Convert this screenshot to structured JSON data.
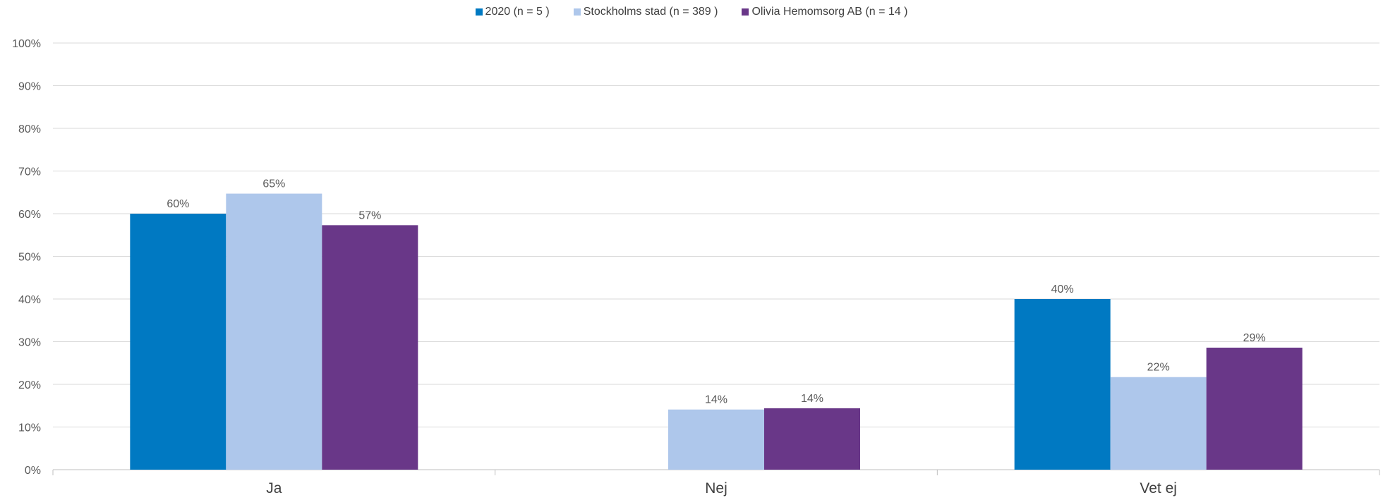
{
  "chart_data": {
    "type": "bar",
    "categories": [
      "Ja",
      "Nej",
      "Vet ej"
    ],
    "series": [
      {
        "name": "2020 (n = 5 )",
        "color": "#0079C2",
        "values": [
          60,
          null,
          40
        ],
        "labels": [
          "60%",
          "",
          "40%"
        ]
      },
      {
        "name": "Stockholms stad (n = 389 )",
        "color": "#AEC7EB",
        "values": [
          64.7,
          14.1,
          21.7
        ],
        "labels": [
          "65%",
          "14%",
          "22%"
        ]
      },
      {
        "name": "Olivia Hemomsorg AB (n = 14 )",
        "color": "#693788",
        "values": [
          57.3,
          14.4,
          28.6
        ],
        "labels": [
          "57%",
          "14%",
          "29%"
        ]
      }
    ],
    "y_ticks": [
      "0%",
      "10%",
      "20%",
      "30%",
      "40%",
      "50%",
      "60%",
      "70%",
      "80%",
      "90%",
      "100%"
    ],
    "ylim": [
      0,
      100
    ],
    "grid": true,
    "legend_position": "top-center",
    "title": "",
    "xlabel": "",
    "ylabel": ""
  }
}
